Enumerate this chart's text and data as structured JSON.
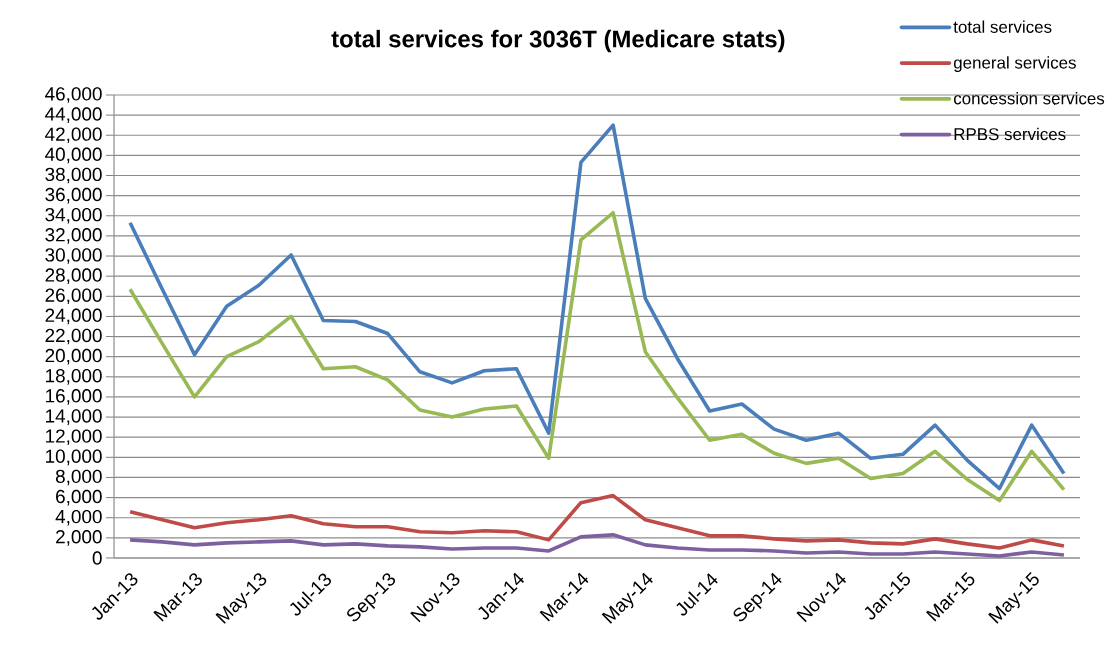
{
  "chart_data": {
    "type": "line",
    "title": "total services for 3036T (Medicare stats)",
    "categories": [
      "Jan-13",
      null,
      "Mar-13",
      null,
      "May-13",
      null,
      "Jul-13",
      null,
      "Sep-13",
      null,
      "Nov-13",
      null,
      "Jan-14",
      null,
      "Mar-14",
      null,
      "May-14",
      null,
      "Jul-14",
      null,
      "Sep-14",
      null,
      "Nov-14",
      null,
      "Jan-15",
      null,
      "Mar-15",
      null,
      "May-15",
      null
    ],
    "series": [
      {
        "name": "total services",
        "color": "#4a7ebb",
        "values": [
          33300,
          26700,
          20200,
          25000,
          27100,
          30100,
          23600,
          23500,
          22300,
          18500,
          17400,
          18600,
          18800,
          12400,
          39300,
          43000,
          25800,
          19800,
          14600,
          15300,
          12800,
          11700,
          12400,
          9900,
          10300,
          13200,
          9700,
          6900,
          13200,
          8400
        ]
      },
      {
        "name": "general services",
        "color": "#be4b48",
        "values": [
          4600,
          3800,
          3000,
          3500,
          3800,
          4200,
          3400,
          3100,
          3100,
          2600,
          2500,
          2700,
          2600,
          1800,
          5500,
          6200,
          3800,
          3000,
          2200,
          2200,
          1900,
          1700,
          1800,
          1500,
          1400,
          1900,
          1400,
          1000,
          1800,
          1200
        ]
      },
      {
        "name": "concession services",
        "color": "#98b954",
        "values": [
          26700,
          21300,
          16000,
          20000,
          21500,
          24000,
          18800,
          19000,
          17700,
          14700,
          14000,
          14800,
          15100,
          9900,
          31600,
          34300,
          20500,
          15900,
          11700,
          12300,
          10400,
          9400,
          9900,
          7900,
          8400,
          10600,
          7800,
          5700,
          10600,
          6800
        ]
      },
      {
        "name": "RPBS services",
        "color": "#7d60a0",
        "values": [
          1800,
          1600,
          1300,
          1500,
          1600,
          1700,
          1300,
          1400,
          1200,
          1100,
          900,
          1000,
          1000,
          700,
          2100,
          2300,
          1300,
          1000,
          800,
          800,
          700,
          500,
          600,
          400,
          400,
          600,
          400,
          200,
          600,
          300
        ]
      }
    ],
    "ylim": [
      0,
      46000
    ],
    "yticks": [
      {
        "value": 0,
        "label": "0"
      },
      {
        "value": 2000,
        "label": "2,000"
      },
      {
        "value": 4000,
        "label": "4,000"
      },
      {
        "value": 6000,
        "label": "6,000"
      },
      {
        "value": 8000,
        "label": "8,000"
      },
      {
        "value": 10000,
        "label": "10,000"
      },
      {
        "value": 12000,
        "label": "12,000"
      },
      {
        "value": 14000,
        "label": "14,000"
      },
      {
        "value": 16000,
        "label": "16,000"
      },
      {
        "value": 18000,
        "label": "18,000"
      },
      {
        "value": 20000,
        "label": "20,000"
      },
      {
        "value": 22000,
        "label": "22,000"
      },
      {
        "value": 24000,
        "label": "24,000"
      },
      {
        "value": 26000,
        "label": "26,000"
      },
      {
        "value": 28000,
        "label": "28,000"
      },
      {
        "value": 30000,
        "label": "30,000"
      },
      {
        "value": 32000,
        "label": "32,000"
      },
      {
        "value": 34000,
        "label": "34,000"
      },
      {
        "value": 36000,
        "label": "36,000"
      },
      {
        "value": 38000,
        "label": "38,000"
      },
      {
        "value": 40000,
        "label": "40,000"
      },
      {
        "value": 42000,
        "label": "42,000"
      },
      {
        "value": 44000,
        "label": "44,000"
      },
      {
        "value": 46000,
        "label": "46,000"
      }
    ],
    "grid": "y",
    "legend": "top right",
    "marker": "none",
    "line_style": "solid"
  }
}
